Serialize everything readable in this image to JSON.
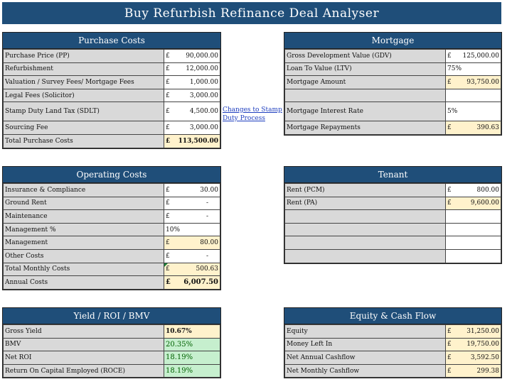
{
  "title": "Buy Refurbish Refinance Deal Analyser",
  "purchase": {
    "header": "Purchase Costs",
    "rows": [
      {
        "label": "Purchase Price (PP)",
        "cur": "£",
        "value": "90,000.00"
      },
      {
        "label": "Refurbishment",
        "cur": "£",
        "value": "12,000.00"
      },
      {
        "label": "Valuation / Survey Fees/ Mortgage Fees",
        "cur": "£",
        "value": "1,000.00"
      },
      {
        "label": "Legal Fees (Solicitor)",
        "cur": "£",
        "value": "3,000.00"
      },
      {
        "label": "Stamp Duty Land Tax (SDLT)",
        "cur": "£",
        "value": "4,500.00"
      },
      {
        "label": "Sourcing Fee",
        "cur": "£",
        "value": "3,000.00"
      },
      {
        "label": "Total Purchase Costs",
        "cur": "£",
        "value": "113,500.00"
      }
    ]
  },
  "link": {
    "text": "Changes to Stamp Duty Process"
  },
  "mortgage": {
    "header": "Mortgage",
    "rows": [
      {
        "label": "Gross Development Value (GDV)",
        "cur": "£",
        "value": "125,000.00"
      },
      {
        "label": "Loan To Value (LTV)",
        "cur": "",
        "value": "75%"
      },
      {
        "label": "Mortgage Amount",
        "cur": "£",
        "value": "93,750.00"
      },
      {
        "label": "",
        "cur": "",
        "value": ""
      },
      {
        "label": "Mortgage Interest Rate",
        "cur": "",
        "value": "5%"
      },
      {
        "label": "Mortgage Repayments",
        "cur": "£",
        "value": "390.63"
      }
    ]
  },
  "operating": {
    "header": "Operating Costs",
    "rows": [
      {
        "label": "Insurance & Compliance",
        "cur": "£",
        "value": "30.00"
      },
      {
        "label": "Ground Rent",
        "cur": "£",
        "value": "-"
      },
      {
        "label": "Maintenance",
        "cur": "£",
        "value": "-"
      },
      {
        "label": "Management %",
        "cur": "",
        "value": "10%"
      },
      {
        "label": "Management",
        "cur": "£",
        "value": "80.00"
      },
      {
        "label": "Other Costs",
        "cur": "£",
        "value": "-"
      },
      {
        "label": "Total Monthly Costs",
        "cur": "£",
        "value": "500.63"
      },
      {
        "label": "Annual Costs",
        "cur": "£",
        "value": "6,007.50"
      }
    ]
  },
  "tenant": {
    "header": "Tenant",
    "rows": [
      {
        "label": "Rent (PCM)",
        "cur": "£",
        "value": "800.00"
      },
      {
        "label": "Rent (PA)",
        "cur": "£",
        "value": "9,600.00"
      },
      {
        "label": "",
        "cur": "",
        "value": ""
      },
      {
        "label": "",
        "cur": "",
        "value": ""
      },
      {
        "label": "",
        "cur": "",
        "value": ""
      },
      {
        "label": "",
        "cur": "",
        "value": ""
      }
    ]
  },
  "yield": {
    "header": "Yield / ROI / BMV",
    "rows": [
      {
        "label": "Gross Yield",
        "value": "10.67%"
      },
      {
        "label": "BMV",
        "value": "20.35%"
      },
      {
        "label": "Net ROI",
        "value": "18.19%"
      },
      {
        "label": "Return On Capital Employed (ROCE)",
        "value": "18.19%"
      }
    ]
  },
  "equity": {
    "header": "Equity & Cash Flow",
    "rows": [
      {
        "label": "Equity",
        "cur": "£",
        "value": "31,250.00"
      },
      {
        "label": "Money Left In",
        "cur": "£",
        "value": "19,750.00"
      },
      {
        "label": "Net Annual Cashflow",
        "cur": "£",
        "value": "3,592.50"
      },
      {
        "label": "Net Monthly Cashflow",
        "cur": "£",
        "value": "299.38"
      }
    ]
  }
}
